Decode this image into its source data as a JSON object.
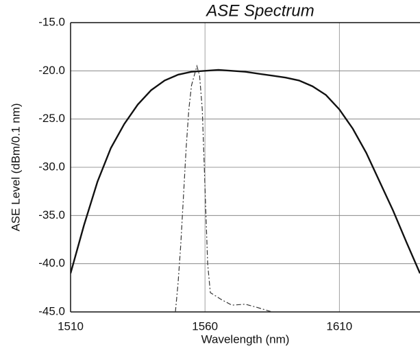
{
  "chart_data": {
    "type": "line",
    "title": "ASE Spectrum",
    "x_label": "Wavelength (nm)",
    "y_label": "ASE Level (dBm/0.1 nm)",
    "xlim": [
      1510,
      1640
    ],
    "xticks": [
      1510,
      1560,
      1610
    ],
    "ylim": [
      -45,
      -15
    ],
    "yticks": [
      {
        "value": -15,
        "label": "-15.0"
      },
      {
        "value": -20,
        "label": "-20.0"
      },
      {
        "value": -25,
        "label": "-25.0"
      },
      {
        "value": -30,
        "label": "-30.0"
      },
      {
        "value": -35,
        "label": "-35.0"
      },
      {
        "value": -40,
        "label": "-40.0"
      },
      {
        "value": -45,
        "label": "-45.0"
      }
    ],
    "grid": true,
    "series": [
      {
        "color": "#111111",
        "line_style": "solid",
        "x": [
          1510,
          1515,
          1520,
          1525,
          1530,
          1535,
          1540,
          1545,
          1550,
          1555,
          1560,
          1565,
          1570,
          1575,
          1580,
          1585,
          1590,
          1595,
          1600,
          1605,
          1610,
          1615,
          1620,
          1625,
          1630,
          1635,
          1640
        ],
        "values": [
          -41,
          -36,
          -31.5,
          -28,
          -25.5,
          -23.5,
          -22,
          -21,
          -20.4,
          -20.1,
          -20,
          -19.9,
          -20,
          -20.1,
          -20.3,
          -20.5,
          -20.7,
          -21,
          -21.6,
          -22.5,
          -24,
          -26,
          -28.5,
          -31.5,
          -34.5,
          -37.8,
          -41
        ]
      },
      {
        "color": "#333333",
        "line_style": "dashed",
        "x": [
          1549,
          1550,
          1551,
          1552,
          1553,
          1554,
          1555,
          1557,
          1558,
          1559,
          1560,
          1561,
          1562,
          1566,
          1570,
          1575,
          1579,
          1585
        ],
        "values": [
          -45,
          -42,
          -38,
          -33,
          -28,
          -24,
          -21.5,
          -19.5,
          -20.5,
          -24,
          -32,
          -40,
          -43,
          -43.7,
          -44.3,
          -44.2,
          -44.5,
          -45
        ]
      }
    ]
  }
}
